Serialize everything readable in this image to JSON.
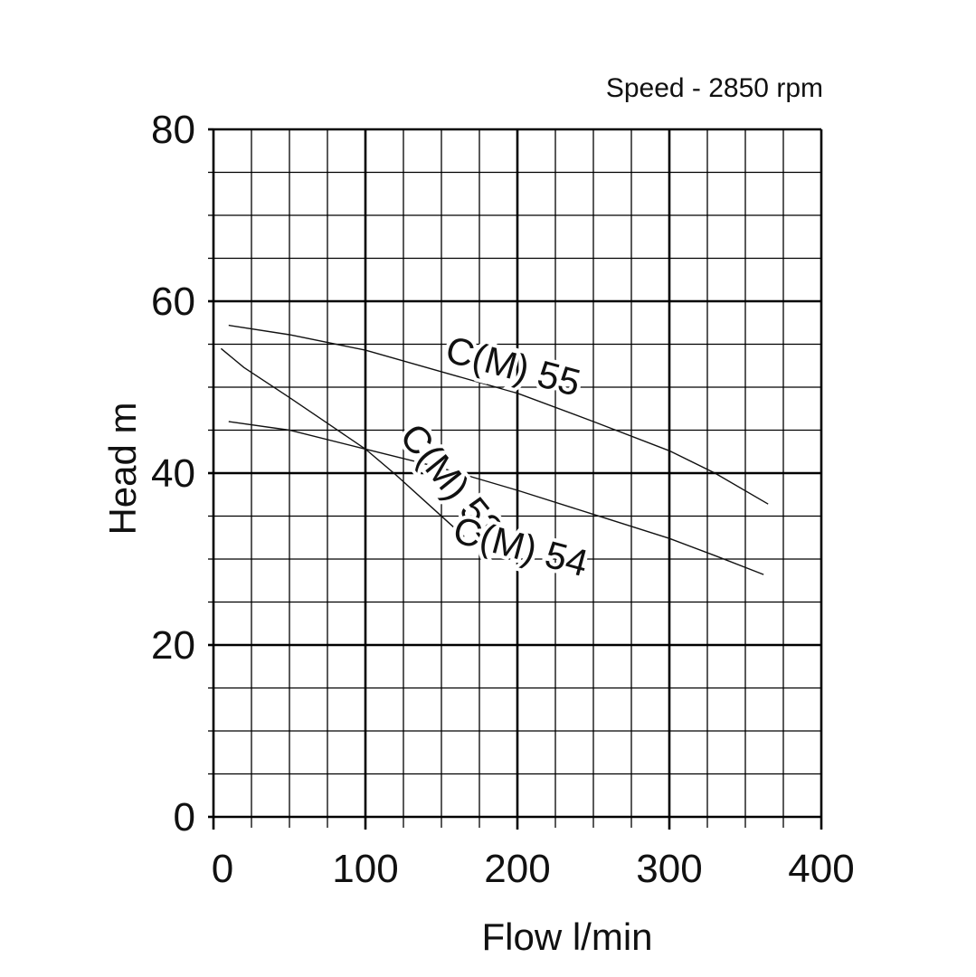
{
  "chart_data": {
    "type": "line",
    "title": "",
    "annotation": "Speed - 2850 rpm",
    "xlabel": "Flow l/min",
    "ylabel": "Head m",
    "xlim": [
      0,
      400
    ],
    "ylim": [
      0,
      80
    ],
    "xticks": [
      "0",
      "100",
      "200",
      "300",
      "400"
    ],
    "yticks": [
      "0",
      "20",
      "40",
      "60",
      "80"
    ],
    "grid": true,
    "series": [
      {
        "name": "C(M) 53",
        "x": [
          5,
          20,
          50,
          80,
          100,
          120,
          140,
          165
        ],
        "y": [
          54.5,
          52.3,
          48.8,
          45.2,
          42.8,
          39.8,
          36.6,
          32.6
        ]
      },
      {
        "name": "C(M) 54",
        "x": [
          10,
          50,
          100,
          150,
          200,
          250,
          300,
          330,
          362
        ],
        "y": [
          46.0,
          45.0,
          42.8,
          40.6,
          38.0,
          35.2,
          32.4,
          30.4,
          28.2
        ]
      },
      {
        "name": "C(M) 55",
        "x": [
          10,
          50,
          100,
          150,
          200,
          250,
          300,
          330,
          365
        ],
        "y": [
          57.2,
          56.1,
          54.3,
          51.8,
          49.3,
          46.0,
          42.6,
          40.0,
          36.4
        ]
      }
    ]
  }
}
